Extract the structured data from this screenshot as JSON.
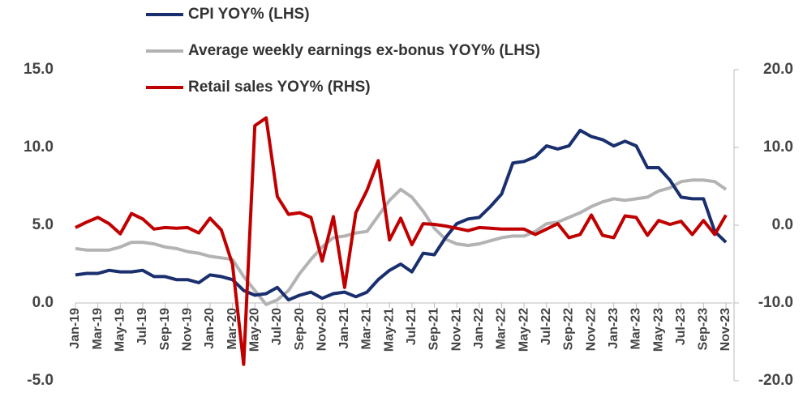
{
  "chart_data": {
    "type": "line",
    "categories": [
      "Jan-19",
      null,
      "Mar-19",
      null,
      "May-19",
      null,
      "Jul-19",
      null,
      "Sep-19",
      null,
      "Nov-19",
      null,
      "Jan-20",
      null,
      "Mar-20",
      null,
      "May-20",
      null,
      "Jul-20",
      null,
      "Sep-20",
      null,
      "Nov-20",
      null,
      "Jan-21",
      null,
      "Mar-21",
      null,
      "May-21",
      null,
      "Jul-21",
      null,
      "Sep-21",
      null,
      "Nov-21",
      null,
      "Jan-22",
      null,
      "Mar-22",
      null,
      "May-22",
      null,
      "Jul-22",
      null,
      "Sep-22",
      null,
      "Nov-22",
      null,
      "Jan-23",
      null,
      "Mar-23",
      null,
      "May-23",
      null,
      "Jul-23",
      null,
      "Sep-23",
      null,
      "Nov-23"
    ],
    "series": [
      {
        "name": "CPI YOY% (LHS)",
        "color": "#1a2f6e",
        "values": [
          1.8,
          1.9,
          1.9,
          2.1,
          2.0,
          2.0,
          2.1,
          1.7,
          1.7,
          1.5,
          1.5,
          1.3,
          1.8,
          1.7,
          1.5,
          0.8,
          0.5,
          0.6,
          1.0,
          0.2,
          0.5,
          0.7,
          0.3,
          0.6,
          0.7,
          0.4,
          0.7,
          1.5,
          2.1,
          2.5,
          2.0,
          3.2,
          3.1,
          4.2,
          5.1,
          5.4,
          5.5,
          6.2,
          7.0,
          9.0,
          9.1,
          9.4,
          10.1,
          9.9,
          10.1,
          11.1,
          10.7,
          10.5,
          10.1,
          10.4,
          10.1,
          8.7,
          8.7,
          7.9,
          6.8,
          6.7,
          6.7,
          4.6,
          3.9
        ]
      },
      {
        "name": "Average weekly earnings ex-bonus YOY% (LHS)",
        "color": "#b3b3b3",
        "values": [
          3.5,
          3.4,
          3.4,
          3.4,
          3.6,
          3.9,
          3.9,
          3.8,
          3.6,
          3.5,
          3.3,
          3.2,
          3.0,
          2.9,
          2.8,
          1.7,
          0.8,
          -0.1,
          0.2,
          0.8,
          1.9,
          2.8,
          3.6,
          4.2,
          4.3,
          4.5,
          4.6,
          5.6,
          6.6,
          7.3,
          6.8,
          5.9,
          4.8,
          4.1,
          3.8,
          3.7,
          3.8,
          4.0,
          4.2,
          4.3,
          4.3,
          4.6,
          5.1,
          5.2,
          5.5,
          5.8,
          6.2,
          6.5,
          6.7,
          6.6,
          6.7,
          6.8,
          7.2,
          7.4,
          7.8,
          7.9,
          7.9,
          7.8,
          7.3
        ]
      },
      {
        "name": "Retail sales YOY% (RHS)",
        "color": "#c00000",
        "axis": "y2",
        "values": [
          -0.3,
          0.4,
          1.0,
          0.2,
          -1.1,
          1.5,
          0.8,
          -0.5,
          -0.3,
          -0.4,
          -0.3,
          -1.0,
          0.9,
          -0.6,
          -5.0,
          -17.9,
          12.8,
          13.8,
          3.7,
          1.4,
          1.6,
          1.0,
          -4.6,
          1.1,
          -8.0,
          1.6,
          4.5,
          8.3,
          -1.9,
          0.9,
          -2.5,
          0.2,
          0.1,
          -0.1,
          -0.4,
          -0.7,
          -0.3,
          -0.4,
          -0.5,
          -0.5,
          -0.5,
          -1.2,
          -0.5,
          0.2,
          -1.6,
          -1.2,
          1.3,
          -1.3,
          -1.6,
          1.2,
          1.0,
          -1.3,
          0.6,
          0.1,
          0.5,
          -1.2,
          0.6,
          -1.2,
          1.3
        ]
      }
    ],
    "ylim": [
      -5,
      15
    ],
    "yticks": [
      {
        "value": -5,
        "label": "-5.0"
      },
      {
        "value": 0,
        "label": "0.0"
      },
      {
        "value": 5,
        "label": "5.0"
      },
      {
        "value": 10,
        "label": "10.0"
      },
      {
        "value": 15,
        "label": "15.0"
      }
    ],
    "y2lim": [
      -20,
      20
    ],
    "y2ticks": [
      {
        "value": -20,
        "label": "-20.0"
      },
      {
        "value": -10,
        "label": "-10.0"
      },
      {
        "value": 0,
        "label": "0.0"
      },
      {
        "value": 10,
        "label": "10.0"
      },
      {
        "value": 20,
        "label": "20.0"
      }
    ],
    "grid": false
  }
}
